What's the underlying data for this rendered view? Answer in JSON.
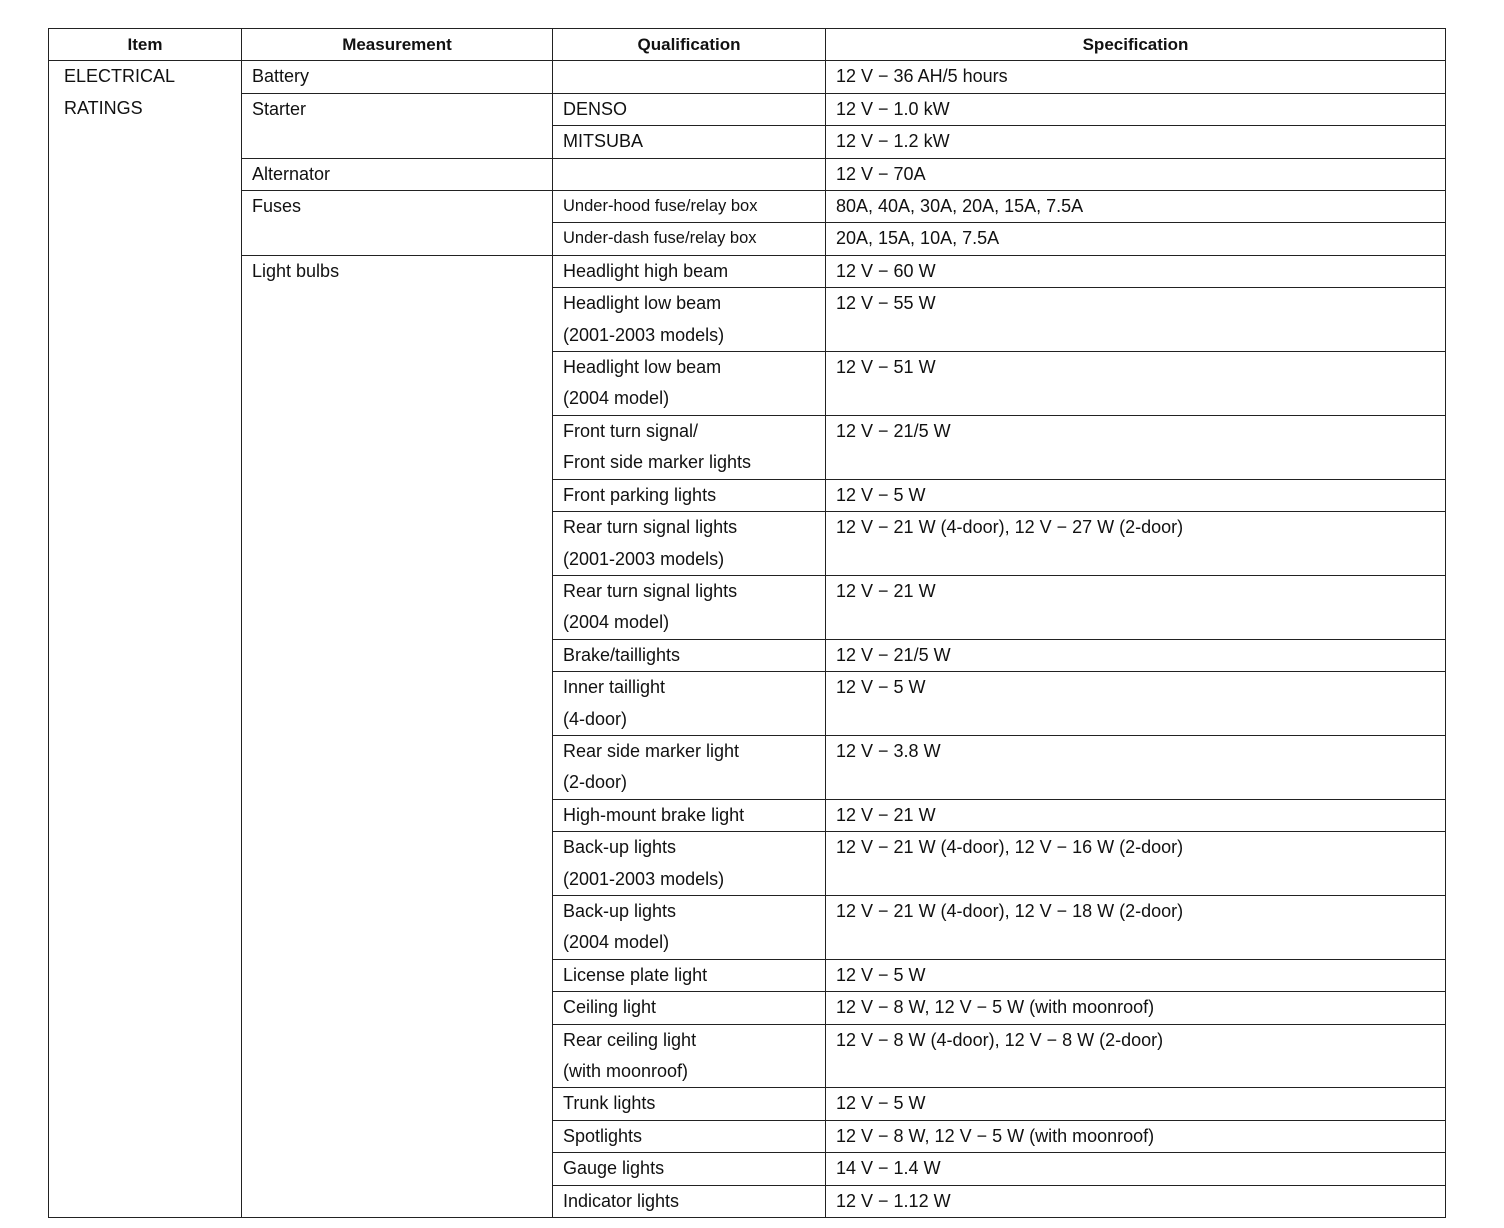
{
  "headers": {
    "item": "Item",
    "measurement": "Measurement",
    "qualification": "Qualification",
    "specification": "Specification"
  },
  "item": [
    "ELECTRICAL",
    "RATINGS"
  ],
  "groups": [
    {
      "measurement": "Battery",
      "rows": [
        {
          "qualification": [],
          "specification": "12 V − 36 AH/5 hours"
        }
      ]
    },
    {
      "measurement": "Starter",
      "rows": [
        {
          "qualification": [
            "DENSO"
          ],
          "specification": "12 V − 1.0 kW"
        },
        {
          "qualification": [
            "MITSUBA"
          ],
          "specification": "12 V − 1.2 kW"
        }
      ]
    },
    {
      "measurement": "Alternator",
      "rows": [
        {
          "qualification": [],
          "specification": "12 V − 70A"
        }
      ]
    },
    {
      "measurement": "Fuses",
      "rows": [
        {
          "qualification": [
            "Under-hood fuse/relay box"
          ],
          "specification": "80A, 40A, 30A, 20A, 15A, 7.5A",
          "small": true
        },
        {
          "qualification": [
            "Under-dash fuse/relay box"
          ],
          "specification": "20A, 15A, 10A, 7.5A",
          "small": true
        }
      ]
    },
    {
      "measurement": "Light bulbs",
      "rows": [
        {
          "qualification": [
            "Headlight high beam"
          ],
          "specification": "12 V − 60 W"
        },
        {
          "qualification": [
            "Headlight low beam",
            "(2001-2003 models)"
          ],
          "specification": "12 V − 55 W"
        },
        {
          "qualification": [
            "Headlight low beam",
            "(2004 model)"
          ],
          "specification": "12 V − 51 W"
        },
        {
          "qualification": [
            "Front turn signal/",
            "Front side marker lights"
          ],
          "specification": "12 V − 21/5 W"
        },
        {
          "qualification": [
            "Front parking lights"
          ],
          "specification": "12 V − 5 W"
        },
        {
          "qualification": [
            "Rear turn signal lights",
            "(2001-2003 models)"
          ],
          "specification": "12 V − 21 W (4-door), 12 V − 27 W (2-door)"
        },
        {
          "qualification": [
            "Rear turn signal lights",
            "(2004 model)"
          ],
          "specification": "12 V − 21 W"
        },
        {
          "qualification": [
            "Brake/taillights"
          ],
          "specification": "12 V − 21/5 W"
        },
        {
          "qualification": [
            "Inner taillight",
            "(4-door)"
          ],
          "specification": "12 V − 5 W"
        },
        {
          "qualification": [
            "Rear side marker light",
            "(2-door)"
          ],
          "specification": "12 V − 3.8 W"
        },
        {
          "qualification": [
            "High-mount brake light"
          ],
          "specification": "12 V − 21 W"
        },
        {
          "qualification": [
            "Back-up lights",
            "(2001-2003 models)"
          ],
          "specification": "12 V − 21 W (4-door), 12 V − 16 W (2-door)"
        },
        {
          "qualification": [
            "Back-up lights",
            "(2004 model)"
          ],
          "specification": "12 V − 21 W (4-door), 12 V − 18 W (2-door)"
        },
        {
          "qualification": [
            "License plate light"
          ],
          "specification": "12 V − 5 W"
        },
        {
          "qualification": [
            "Ceiling light"
          ],
          "specification": "12 V − 8 W, 12 V − 5 W (with moonroof)"
        },
        {
          "qualification": [
            "Rear ceiling light",
            "(with moonroof)"
          ],
          "specification": "12 V − 8 W (4-door), 12 V − 8 W (2-door)"
        },
        {
          "qualification": [
            "Trunk lights"
          ],
          "specification": "12 V − 5 W"
        },
        {
          "qualification": [
            "Spotlights"
          ],
          "specification": "12 V − 8 W, 12 V − 5 W (with moonroof)"
        },
        {
          "qualification": [
            "Gauge lights"
          ],
          "specification": "14 V − 1.4 W"
        },
        {
          "qualification": [
            "Indicator lights"
          ],
          "specification": "12 V − 1.12 W"
        }
      ]
    }
  ]
}
